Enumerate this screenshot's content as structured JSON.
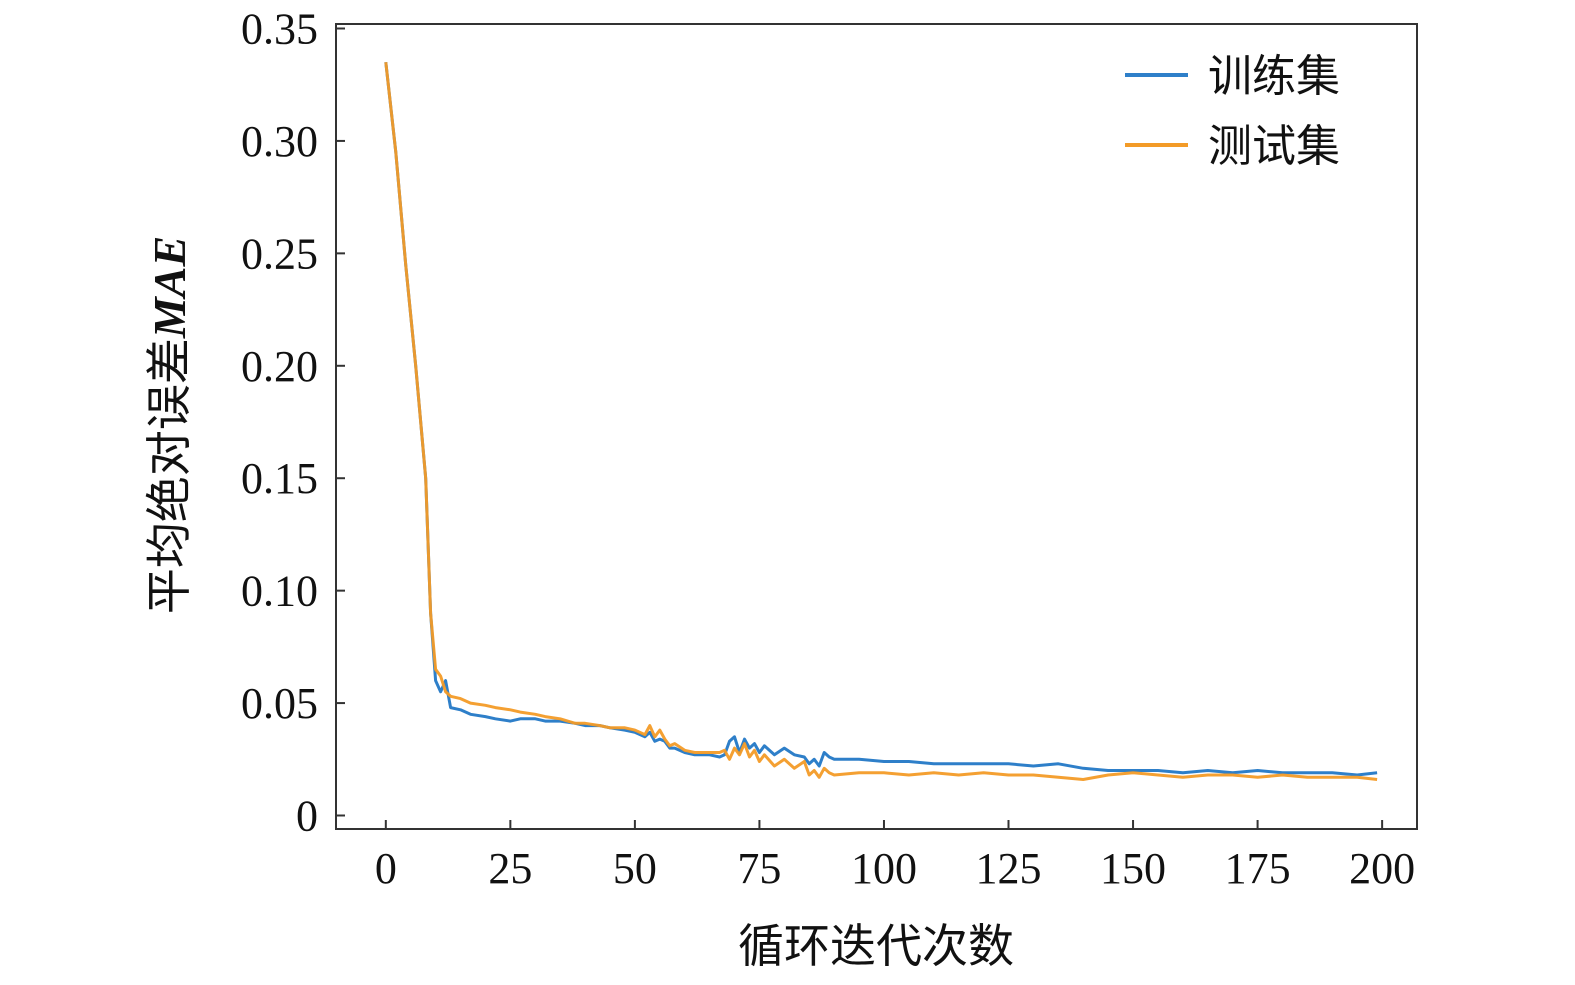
{
  "chart_data": {
    "type": "line",
    "title": "",
    "xlabel": "循环迭代次数",
    "ylabel": {
      "prefix": "平均绝对误差",
      "italic": "MAE"
    },
    "xlim": [
      -10,
      207
    ],
    "ylim": [
      -0.006,
      0.352
    ],
    "xticks": [
      0,
      25,
      50,
      75,
      100,
      125,
      150,
      175,
      200
    ],
    "xtick_labels": [
      "0",
      "25",
      "50",
      "75",
      "100",
      "125",
      "150",
      "175",
      "200"
    ],
    "yticks": [
      0,
      0.05,
      0.1,
      0.15,
      0.2,
      0.25,
      0.3,
      0.35
    ],
    "ytick_labels": [
      "0",
      "0.05",
      "0.10",
      "0.15",
      "0.20",
      "0.25",
      "0.30",
      "0.35"
    ],
    "grid": false,
    "legend_position": "top-right",
    "series": [
      {
        "name": "训练集",
        "color": "#2e7fc9",
        "x": [
          0,
          2,
          4,
          6,
          8,
          9,
          10,
          11,
          12,
          13,
          15,
          17,
          20,
          22,
          25,
          27,
          30,
          32,
          35,
          38,
          40,
          43,
          45,
          48,
          50,
          52,
          53,
          54,
          55,
          56,
          57,
          58,
          60,
          62,
          65,
          67,
          68,
          69,
          70,
          71,
          72,
          73,
          74,
          75,
          76,
          78,
          80,
          82,
          84,
          85,
          86,
          87,
          88,
          89,
          90,
          95,
          100,
          105,
          110,
          115,
          120,
          125,
          130,
          135,
          140,
          145,
          150,
          155,
          160,
          165,
          170,
          175,
          180,
          185,
          190,
          195,
          199
        ],
        "y": [
          0.335,
          0.295,
          0.245,
          0.2,
          0.15,
          0.09,
          0.06,
          0.055,
          0.06,
          0.048,
          0.047,
          0.045,
          0.044,
          0.043,
          0.042,
          0.043,
          0.043,
          0.042,
          0.042,
          0.041,
          0.04,
          0.04,
          0.039,
          0.038,
          0.037,
          0.035,
          0.037,
          0.033,
          0.034,
          0.033,
          0.03,
          0.03,
          0.028,
          0.027,
          0.027,
          0.026,
          0.027,
          0.033,
          0.035,
          0.028,
          0.034,
          0.03,
          0.032,
          0.028,
          0.031,
          0.027,
          0.03,
          0.027,
          0.026,
          0.023,
          0.025,
          0.022,
          0.028,
          0.026,
          0.025,
          0.025,
          0.024,
          0.024,
          0.023,
          0.023,
          0.023,
          0.023,
          0.022,
          0.023,
          0.021,
          0.02,
          0.02,
          0.02,
          0.019,
          0.02,
          0.019,
          0.02,
          0.019,
          0.019,
          0.019,
          0.018,
          0.019
        ]
      },
      {
        "name": "测试集",
        "color": "#f39b27",
        "x": [
          0,
          2,
          4,
          6,
          8,
          9,
          10,
          11,
          12,
          13,
          15,
          17,
          20,
          22,
          25,
          27,
          30,
          32,
          35,
          38,
          40,
          43,
          45,
          48,
          50,
          52,
          53,
          54,
          55,
          56,
          57,
          58,
          60,
          62,
          65,
          67,
          68,
          69,
          70,
          71,
          72,
          73,
          74,
          75,
          76,
          78,
          80,
          82,
          84,
          85,
          86,
          87,
          88,
          89,
          90,
          95,
          100,
          105,
          110,
          115,
          120,
          125,
          130,
          135,
          140,
          145,
          150,
          155,
          160,
          165,
          170,
          175,
          180,
          185,
          190,
          195,
          199
        ],
        "y": [
          0.335,
          0.295,
          0.245,
          0.2,
          0.15,
          0.09,
          0.065,
          0.062,
          0.055,
          0.053,
          0.052,
          0.05,
          0.049,
          0.048,
          0.047,
          0.046,
          0.045,
          0.044,
          0.043,
          0.041,
          0.041,
          0.04,
          0.039,
          0.039,
          0.038,
          0.036,
          0.04,
          0.035,
          0.038,
          0.034,
          0.031,
          0.032,
          0.029,
          0.028,
          0.028,
          0.028,
          0.029,
          0.025,
          0.03,
          0.027,
          0.032,
          0.026,
          0.029,
          0.024,
          0.027,
          0.022,
          0.025,
          0.021,
          0.024,
          0.018,
          0.02,
          0.017,
          0.021,
          0.019,
          0.018,
          0.019,
          0.019,
          0.018,
          0.019,
          0.018,
          0.019,
          0.018,
          0.018,
          0.017,
          0.016,
          0.018,
          0.019,
          0.018,
          0.017,
          0.018,
          0.018,
          0.017,
          0.018,
          0.017,
          0.017,
          0.017,
          0.016
        ]
      }
    ]
  }
}
